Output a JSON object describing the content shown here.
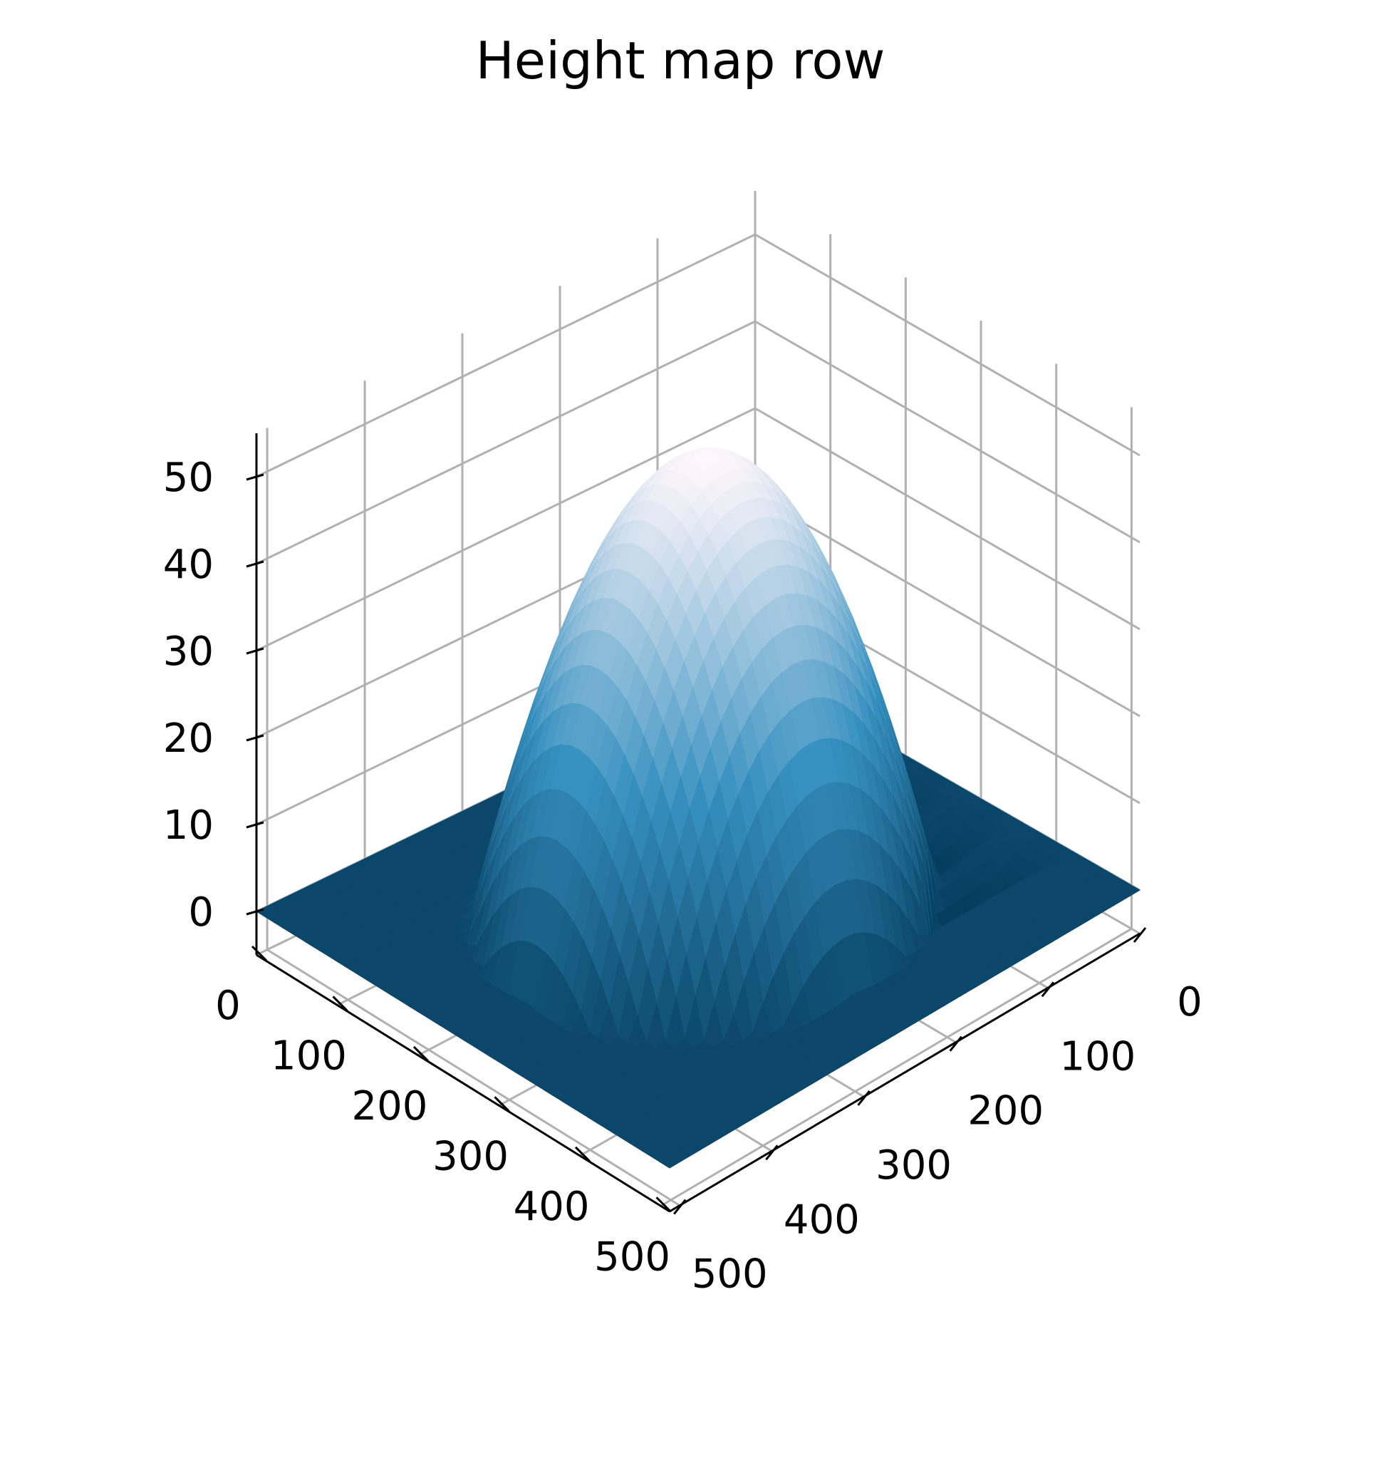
{
  "chart_data": {
    "type": "surface",
    "title": "Height map row",
    "colormap": "PuBu_r",
    "colors": {
      "low": "#023858",
      "mid": "#3690c0",
      "high": "#fff7fb",
      "grid": "#b0b0b0",
      "axis": "#000000"
    },
    "x_axis": {
      "label": "",
      "range": [
        0,
        511
      ],
      "ticks": [
        0,
        100,
        200,
        300,
        400,
        500
      ]
    },
    "y_axis": {
      "label": "",
      "range": [
        0,
        511
      ],
      "ticks": [
        0,
        100,
        200,
        300,
        400,
        500
      ]
    },
    "z_axis": {
      "label": "",
      "range": [
        -5,
        55
      ],
      "ticks": [
        0,
        10,
        20,
        30,
        40,
        50
      ]
    },
    "surface": {
      "description_shape": "dome",
      "dome_center": [
        255,
        255
      ],
      "dome_peak_height": 52,
      "dome_radius": 190,
      "baseline": 0,
      "depression_region": "x 0-200, y 150-420 with values dipping to about -5"
    },
    "grid": true
  }
}
